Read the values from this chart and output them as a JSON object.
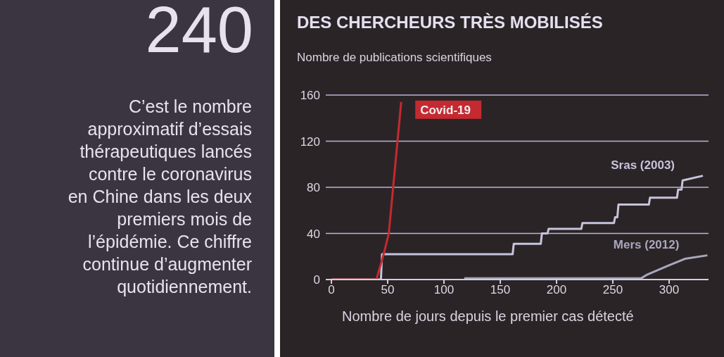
{
  "chart_data": [
    {
      "type": "other",
      "title": "240",
      "annotations": [
        "C’est le nombre approximatif d’essais thérapeutiques lancés contre le coronavirus en Chine dans les deux premiers mois de l’épidémie. Ce chiffre continue d’augmenter quotidiennement."
      ]
    },
    {
      "type": "line",
      "title": "DES CHERCHEURS TRÈS MOBILISÉS",
      "ylabel": "Nombre de publications scientifiques",
      "xlabel": "Nombre de jours depuis le premier cas détecté",
      "xlim": [
        -5,
        335
      ],
      "xticks": [
        0,
        50,
        100,
        150,
        200,
        250,
        300
      ],
      "ylim": [
        0,
        160
      ],
      "yticks": [
        0,
        40,
        80,
        120,
        160
      ],
      "grid": "y",
      "marker": "none",
      "line_style": "solid",
      "series": [
        {
          "name": "Sras (2003)",
          "color": "#c6c3dc",
          "x": [
            0,
            44,
            45,
            161,
            162,
            186,
            187,
            192,
            193,
            222,
            223,
            251,
            252,
            254,
            255,
            282,
            283,
            307,
            308,
            311,
            312,
            330
          ],
          "values": [
            0,
            0,
            22,
            22,
            31,
            31,
            40,
            40,
            44,
            44,
            49,
            49,
            54,
            54,
            65,
            65,
            71,
            71,
            78,
            78,
            86,
            90
          ]
        },
        {
          "name": "Mers (2012)",
          "color": "#a9a7bd",
          "x": [
            118,
            200,
            275,
            280,
            299,
            314,
            334
          ],
          "values": [
            1,
            1,
            1,
            4,
            12,
            18,
            21
          ]
        },
        {
          "name": "Covid-19",
          "color": "#c42a30",
          "x": [
            0,
            40,
            47,
            51,
            62
          ],
          "values": [
            0,
            0,
            24,
            40,
            154
          ]
        }
      ]
    }
  ]
}
